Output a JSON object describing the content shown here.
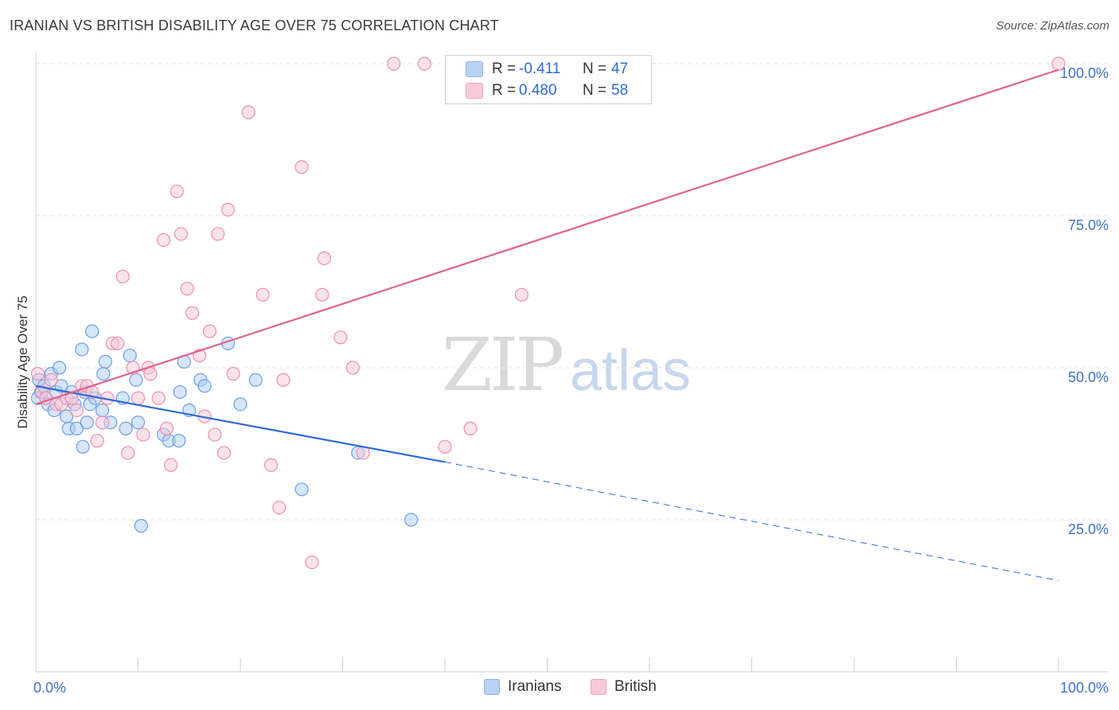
{
  "header": {
    "title": "IRANIAN VS BRITISH DISABILITY AGE OVER 75 CORRELATION CHART",
    "source": "Source: ZipAtlas.com"
  },
  "watermark": {
    "zip": "ZIP",
    "atlas": "atlas"
  },
  "legend": {
    "rows": [
      {
        "r_label": "R = ",
        "r_value": "-0.411",
        "n_label": "N = ",
        "n_value": "47",
        "color": "#9ec0ef"
      },
      {
        "r_label": "R = ",
        "r_value": "0.480",
        "n_label": "N = ",
        "n_value": "58",
        "color": "#f4b4c8"
      }
    ]
  },
  "bottom_legend": {
    "iranians": "Iranians",
    "british": "British"
  },
  "chart_data": {
    "type": "scatter",
    "title": "IRANIAN VS BRITISH DISABILITY AGE OVER 75 CORRELATION CHART",
    "xlabel": "",
    "ylabel": "Disability Age Over 75",
    "xlim": [
      0,
      100
    ],
    "ylim": [
      0,
      100
    ],
    "x_tick_labels": [
      "0.0%",
      "100.0%"
    ],
    "y_tick_labels": [
      "25.0%",
      "50.0%",
      "75.0%",
      "100.0%"
    ],
    "y_ticks": [
      25,
      50,
      75,
      100
    ],
    "grid": true,
    "legend_position": "top-center",
    "series": [
      {
        "name": "Iranians",
        "color": "#6c9ee6",
        "fill": "#aecbf2",
        "trend": {
          "x0": 0,
          "y0": 47,
          "x1": 40,
          "y1": 34.5,
          "dash_to_x": 100,
          "dash_to_y": 15,
          "color": "#2f6bd1"
        },
        "points": [
          [
            0.3,
            48
          ],
          [
            0.5,
            46
          ],
          [
            0.8,
            47
          ],
          [
            1.0,
            45
          ],
          [
            1.2,
            44
          ],
          [
            1.5,
            49
          ],
          [
            1.8,
            43
          ],
          [
            2.0,
            46
          ],
          [
            2.3,
            50
          ],
          [
            2.5,
            47
          ],
          [
            3.0,
            42
          ],
          [
            3.2,
            40
          ],
          [
            3.5,
            46
          ],
          [
            3.8,
            44
          ],
          [
            4.0,
            40
          ],
          [
            4.5,
            53
          ],
          [
            4.6,
            37
          ],
          [
            4.8,
            46
          ],
          [
            5.0,
            41
          ],
          [
            5.3,
            44
          ],
          [
            5.5,
            56
          ],
          [
            5.8,
            45
          ],
          [
            6.5,
            43
          ],
          [
            6.6,
            49
          ],
          [
            6.8,
            51
          ],
          [
            7.3,
            41
          ],
          [
            8.5,
            45
          ],
          [
            8.8,
            40
          ],
          [
            9.2,
            52
          ],
          [
            9.8,
            48
          ],
          [
            10.0,
            41
          ],
          [
            10.3,
            24
          ],
          [
            12.5,
            39
          ],
          [
            13.0,
            38
          ],
          [
            14.0,
            38
          ],
          [
            14.1,
            46
          ],
          [
            14.5,
            51
          ],
          [
            15.0,
            43
          ],
          [
            16.1,
            48
          ],
          [
            16.5,
            47
          ],
          [
            18.8,
            54
          ],
          [
            20.0,
            44
          ],
          [
            21.5,
            48
          ],
          [
            26.0,
            30
          ],
          [
            31.5,
            36
          ],
          [
            36.7,
            25
          ],
          [
            0.2,
            45
          ]
        ]
      },
      {
        "name": "British",
        "color": "#ee8fae",
        "fill": "#f8c8d7",
        "trend": {
          "x0": 0,
          "y0": 44,
          "x1": 100,
          "y1": 99,
          "color": "#e0628e"
        },
        "points": [
          [
            0.2,
            49
          ],
          [
            0.6,
            46
          ],
          [
            1.0,
            45
          ],
          [
            1.5,
            48
          ],
          [
            2.0,
            44
          ],
          [
            2.5,
            44
          ],
          [
            3.0,
            45
          ],
          [
            3.5,
            45
          ],
          [
            4.0,
            43
          ],
          [
            4.5,
            47
          ],
          [
            5.0,
            47
          ],
          [
            5.5,
            46
          ],
          [
            6.0,
            38
          ],
          [
            6.5,
            41
          ],
          [
            7.0,
            45
          ],
          [
            7.5,
            54
          ],
          [
            8.0,
            54
          ],
          [
            8.5,
            65
          ],
          [
            9.0,
            36
          ],
          [
            9.5,
            50
          ],
          [
            10.0,
            45
          ],
          [
            10.5,
            39
          ],
          [
            11.0,
            50
          ],
          [
            11.2,
            49
          ],
          [
            12.0,
            45
          ],
          [
            12.5,
            71
          ],
          [
            12.8,
            40
          ],
          [
            13.2,
            34
          ],
          [
            13.8,
            79
          ],
          [
            14.2,
            72
          ],
          [
            14.8,
            63
          ],
          [
            15.3,
            59
          ],
          [
            16.0,
            52
          ],
          [
            16.5,
            42
          ],
          [
            17.0,
            56
          ],
          [
            17.5,
            39
          ],
          [
            17.8,
            72
          ],
          [
            18.4,
            36
          ],
          [
            18.8,
            76
          ],
          [
            19.3,
            49
          ],
          [
            20.8,
            92
          ],
          [
            22.2,
            62
          ],
          [
            23.0,
            34
          ],
          [
            23.8,
            27
          ],
          [
            24.2,
            48
          ],
          [
            26.0,
            83
          ],
          [
            27.0,
            18
          ],
          [
            28.0,
            62
          ],
          [
            28.2,
            68
          ],
          [
            29.8,
            55
          ],
          [
            31.0,
            50
          ],
          [
            32.0,
            36
          ],
          [
            35.0,
            100
          ],
          [
            38.0,
            100
          ],
          [
            40.0,
            37
          ],
          [
            42.5,
            40
          ],
          [
            47.5,
            62
          ],
          [
            100.0,
            100
          ]
        ]
      }
    ]
  }
}
